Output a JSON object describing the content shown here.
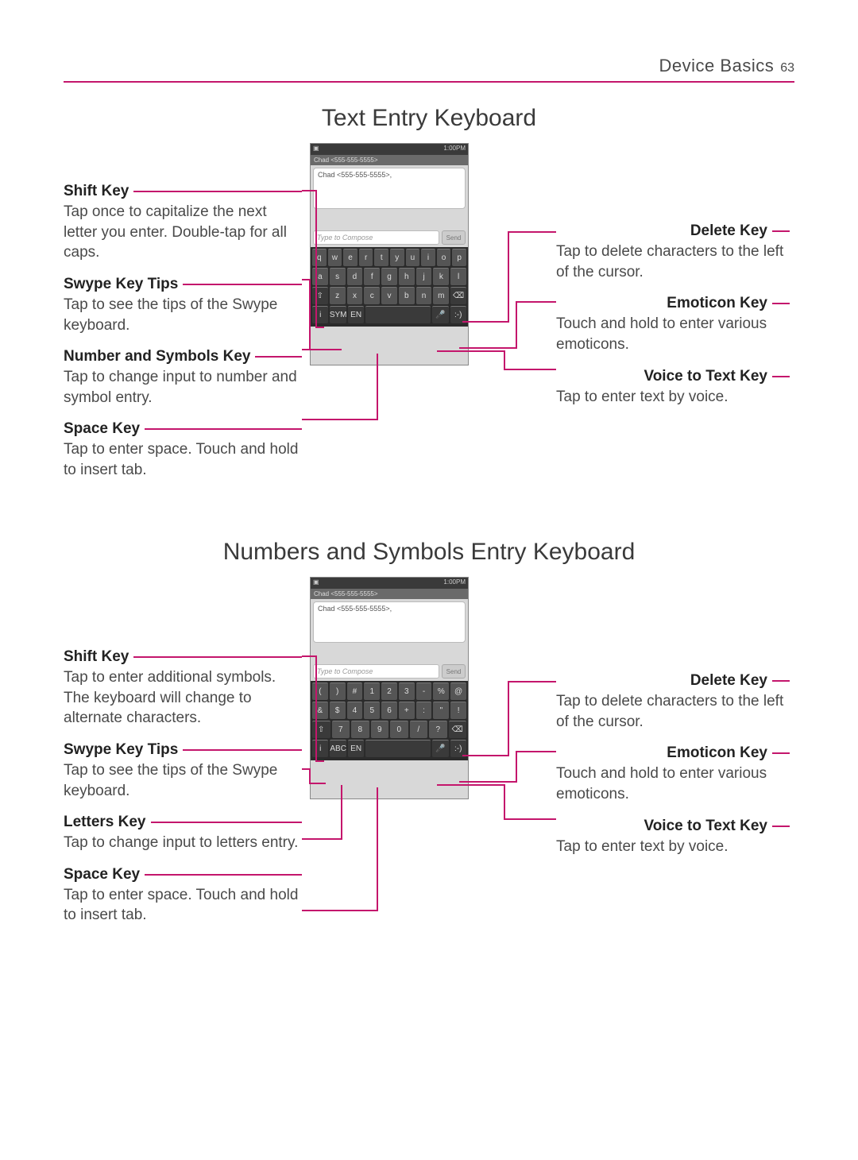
{
  "colors": {
    "accent": "#c4166c",
    "text": "#4a4a4a",
    "heading": "#3a3a3a",
    "rule": "#c4166c"
  },
  "header": {
    "section": "Device Basics",
    "page": "63"
  },
  "section1": {
    "title": "Text Entry Keyboard",
    "phone": {
      "time": "1:00PM",
      "thread": "Chad <555-555-5555>",
      "bubble": "Chad <555-555-5555>,",
      "compose_placeholder": "Type to Compose",
      "send": "Send",
      "rows": [
        [
          "q",
          "w",
          "e",
          "r",
          "t",
          "y",
          "u",
          "i",
          "o",
          "p"
        ],
        [
          "a",
          "s",
          "d",
          "f",
          "g",
          "h",
          "j",
          "k",
          "l"
        ],
        [
          "⇧",
          "z",
          "x",
          "c",
          "v",
          "b",
          "n",
          "m",
          "⌫"
        ],
        [
          "i",
          "SYM",
          "EN",
          "",
          "🎤",
          ":-)"
        ]
      ]
    },
    "left": [
      {
        "label": "Shift Key",
        "desc": "Tap once to capitalize the next letter you enter. Double-tap for all caps."
      },
      {
        "label": "Swype Key Tips",
        "desc": "Tap to see the tips of the Swype keyboard."
      },
      {
        "label": "Number and Symbols Key",
        "desc": "Tap to change input to number and symbol entry."
      },
      {
        "label": "Space Key",
        "desc": "Tap to enter space. Touch and hold to insert tab."
      }
    ],
    "right": [
      {
        "label": "Delete Key",
        "desc": "Tap to delete characters to the left of the cursor."
      },
      {
        "label": "Emoticon Key",
        "desc": "Touch and hold to enter various emoticons."
      },
      {
        "label": "Voice to Text Key",
        "desc": "Tap to enter text by voice."
      }
    ]
  },
  "section2": {
    "title": "Numbers and Symbols Entry Keyboard",
    "phone": {
      "time": "1:00PM",
      "thread": "Chad <555-555-5555>",
      "bubble": "Chad <555-555-5555>,",
      "compose_placeholder": "Type to Compose",
      "send": "Send",
      "rows": [
        [
          "(",
          ")",
          "#",
          "1",
          "2",
          "3",
          "-",
          "%",
          "@"
        ],
        [
          "&",
          "$",
          "4",
          "5",
          "6",
          "+",
          ":",
          "\"",
          "!"
        ],
        [
          "⇧",
          "7",
          "8",
          "9",
          "0",
          "/",
          "?",
          "⌫"
        ],
        [
          "i",
          "ABC",
          "EN",
          "",
          "🎤",
          ":-)"
        ]
      ]
    },
    "left": [
      {
        "label": "Shift Key",
        "desc": "Tap to enter additional symbols. The keyboard will change to alternate characters."
      },
      {
        "label": "Swype Key Tips",
        "desc": "Tap to see the tips of the Swype keyboard."
      },
      {
        "label": "Letters Key",
        "desc": "Tap to change input to letters entry."
      },
      {
        "label": "Space Key",
        "desc": "Tap to enter space. Touch and hold to insert tab."
      }
    ],
    "right": [
      {
        "label": "Delete Key",
        "desc": "Tap to delete characters to the left of the cursor."
      },
      {
        "label": "Emoticon Key",
        "desc": "Touch and hold to enter various emoticons."
      },
      {
        "label": "Voice to Text Key",
        "desc": "Tap to enter text by voice."
      }
    ]
  }
}
